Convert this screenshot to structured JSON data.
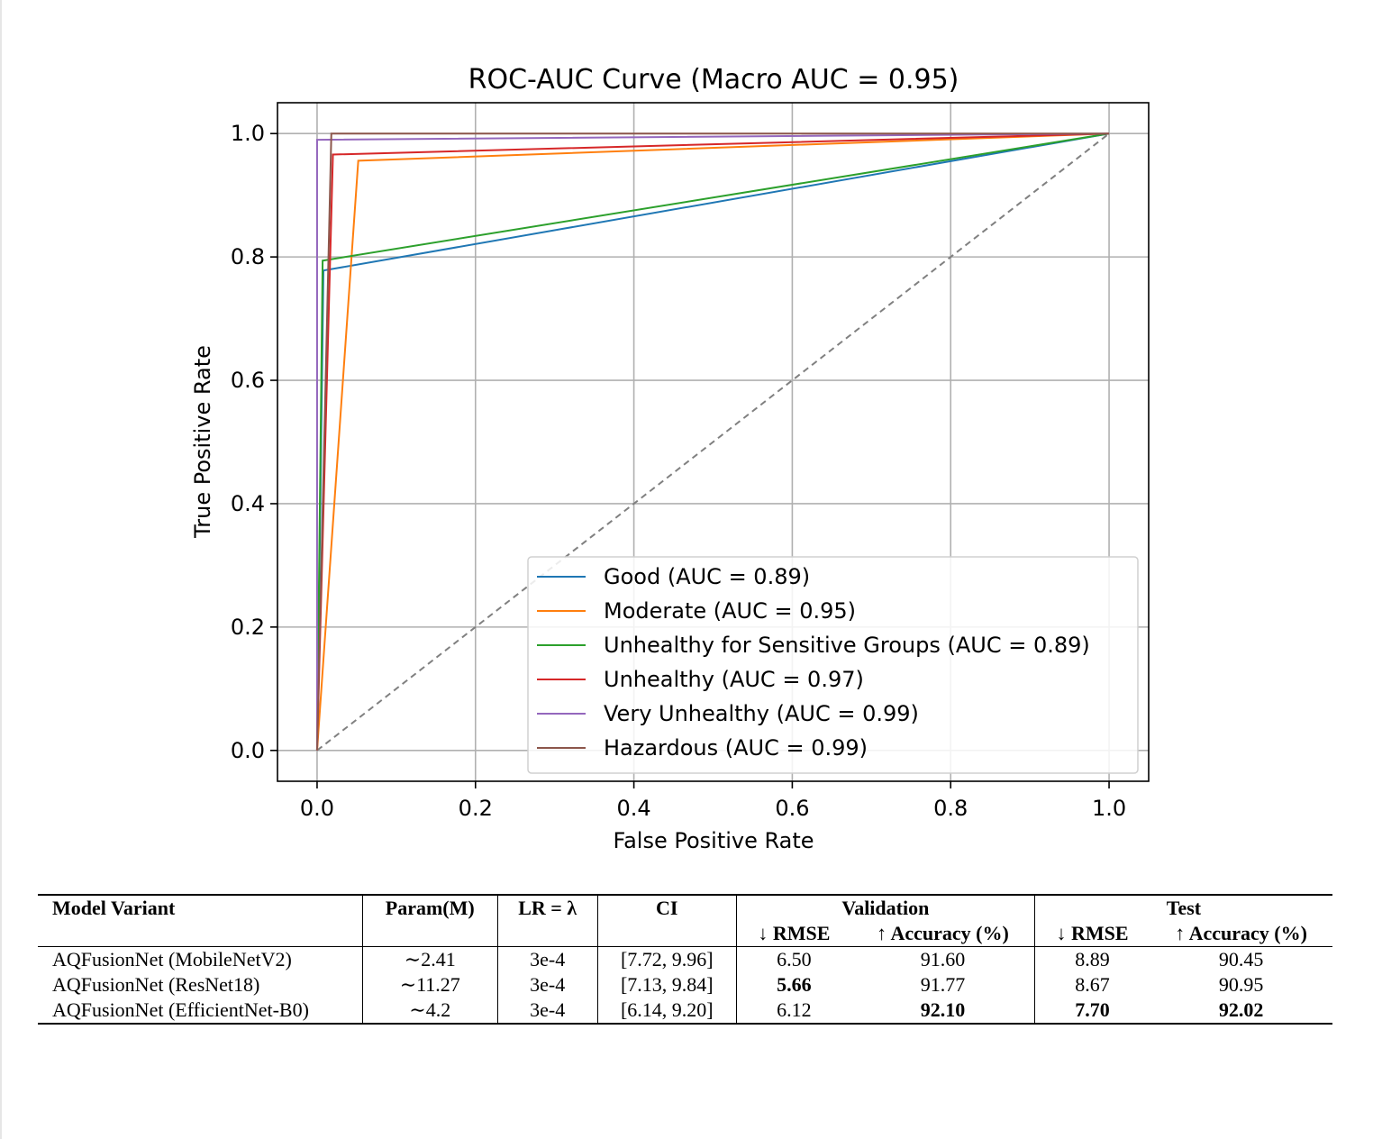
{
  "chart_data": {
    "type": "line",
    "title": "ROC-AUC Curve (Macro AUC = 0.95)",
    "xlabel": "False Positive Rate",
    "ylabel": "True Positive Rate",
    "xlim": [
      -0.05,
      1.05
    ],
    "ylim": [
      -0.05,
      1.05
    ],
    "xticks": [
      0.0,
      0.2,
      0.4,
      0.6,
      0.8,
      1.0
    ],
    "yticks": [
      0.0,
      0.2,
      0.4,
      0.6,
      0.8,
      1.0
    ],
    "xtick_labels": [
      "0.0",
      "0.2",
      "0.4",
      "0.6",
      "0.8",
      "1.0"
    ],
    "ytick_labels": [
      "0.0",
      "0.2",
      "0.4",
      "0.6",
      "0.8",
      "1.0"
    ],
    "grid": true,
    "legend_position": "lower-right",
    "series": [
      {
        "name": "Good (AUC = 0.89)",
        "color": "#1f77b4",
        "x": [
          0,
          0.008,
          1
        ],
        "y": [
          0,
          0.778,
          1
        ]
      },
      {
        "name": "Moderate (AUC = 0.95)",
        "color": "#ff7f0e",
        "x": [
          0,
          0.052,
          1
        ],
        "y": [
          0,
          0.956,
          1
        ]
      },
      {
        "name": "Unhealthy for Sensitive Groups (AUC = 0.89)",
        "color": "#2ca02c",
        "x": [
          0,
          0.007,
          1
        ],
        "y": [
          0,
          0.794,
          1
        ]
      },
      {
        "name": "Unhealthy (AUC = 0.97)",
        "color": "#d62728",
        "x": [
          0,
          0.02,
          1
        ],
        "y": [
          0,
          0.966,
          1
        ]
      },
      {
        "name": "Very Unhealthy (AUC = 0.99)",
        "color": "#9467bd",
        "x": [
          0,
          0.0,
          1
        ],
        "y": [
          0,
          0.99,
          1
        ]
      },
      {
        "name": "Hazardous (AUC = 0.99)",
        "color": "#8c564b",
        "x": [
          0,
          0.018,
          1
        ],
        "y": [
          0,
          1.0,
          1
        ]
      }
    ],
    "reference_line": {
      "x": [
        0,
        1
      ],
      "y": [
        0,
        1
      ],
      "color": "#808080",
      "style": "dashed"
    }
  },
  "table": {
    "headers": {
      "model": "Model Variant",
      "param": "Param(M)",
      "lr": "LR = λ",
      "ci": "CI",
      "validation": "Validation",
      "test": "Test",
      "val_rmse": "↓ RMSE",
      "val_acc": "↑ Accuracy (%)",
      "test_rmse": "↓ RMSE",
      "test_acc": "↑ Accuracy (%)"
    },
    "rows": [
      {
        "model": "AQFusionNet (MobileNetV2)",
        "param": "∼2.41",
        "lr": "3e-4",
        "ci": "[7.72, 9.96]",
        "val_rmse": "6.50",
        "val_acc": "91.60",
        "test_rmse": "8.89",
        "test_acc": "90.45"
      },
      {
        "model": "AQFusionNet (ResNet18)",
        "param": "∼11.27",
        "lr": "3e-4",
        "ci": "[7.13, 9.84]",
        "val_rmse": "5.66",
        "val_acc": "91.77",
        "test_rmse": "8.67",
        "test_acc": "90.95"
      },
      {
        "model": "AQFusionNet (EfficientNet-B0)",
        "param": "∼4.2",
        "lr": "3e-4",
        "ci": "[6.14, 9.20]",
        "val_rmse": "6.12",
        "val_acc": "92.10",
        "test_rmse": "7.70",
        "test_acc": "92.02"
      }
    ]
  }
}
